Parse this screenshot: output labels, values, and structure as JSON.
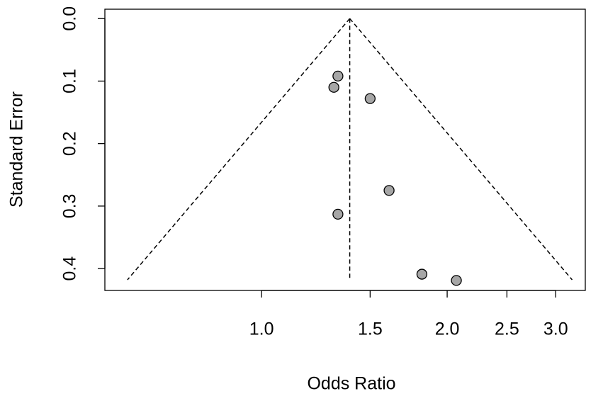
{
  "chart_data": {
    "type": "scatter",
    "x_label": "Odds Ratio",
    "y_label": "Standard Error",
    "xlog": true,
    "yreverse": true,
    "xlim": [
      0.557,
      3.35
    ],
    "ylim": [
      -0.015,
      0.435
    ],
    "xticks": [
      {
        "value": 1,
        "label": "1.0"
      },
      1.5,
      {
        "value": 2,
        "label": "2.0"
      },
      2.5,
      {
        "value": 3,
        "label": "3.0"
      }
    ],
    "yticks": [
      {
        "value": 0,
        "label": "0.0"
      },
      0.1,
      0.2,
      0.3,
      0.4
    ],
    "x": [
      1.33,
      1.31,
      1.5,
      1.61,
      1.33,
      1.82,
      2.07
    ],
    "series": [
      {
        "color": "#a6a6a6",
        "values": [
          0.092,
          0.11,
          0.128,
          0.275,
          0.313,
          0.409,
          0.419
        ]
      }
    ],
    "funnel": {
      "apex": [
        1.39,
        0
      ],
      "left": [
        0.606,
        0.418
      ],
      "right": [
        3.19,
        0.418
      ]
    }
  }
}
